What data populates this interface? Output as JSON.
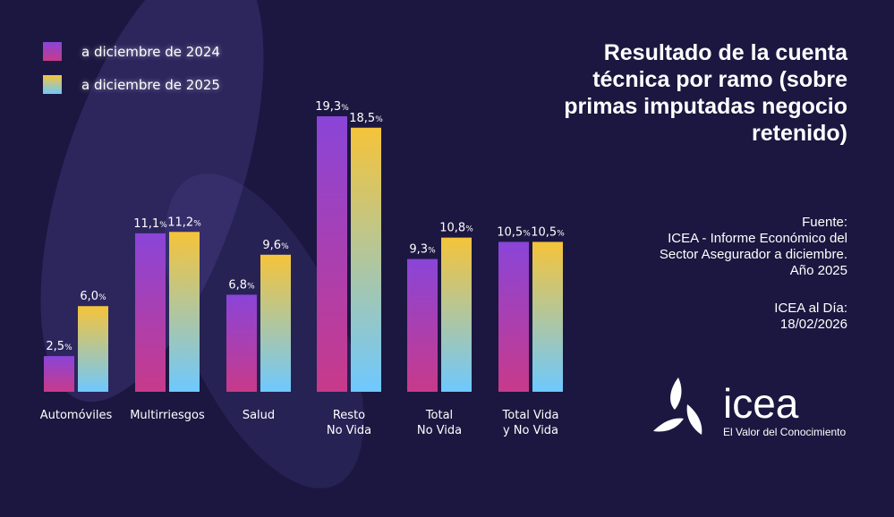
{
  "chart_data": {
    "type": "bar",
    "categories": [
      [
        "Automóviles"
      ],
      [
        "Multirriesgos"
      ],
      [
        "Salud"
      ],
      [
        "Resto",
        "No Vida"
      ],
      [
        "Total",
        "No Vida"
      ],
      [
        "Total Vida",
        "y No Vida"
      ]
    ],
    "series": [
      {
        "name": "a diciembre de 2024",
        "values": [
          2.5,
          11.1,
          6.8,
          19.3,
          9.3,
          10.5
        ],
        "labels": [
          "2,5",
          "11,1",
          "6,8",
          "19,3",
          "9,3",
          "10,5"
        ],
        "gradient": [
          "#8a45d8",
          "#c83a8a"
        ]
      },
      {
        "name": "a diciembre de 2025",
        "values": [
          6.0,
          11.2,
          9.6,
          18.5,
          10.8,
          10.5
        ],
        "labels": [
          "6,0",
          "11,2",
          "9,6",
          "18,5",
          "10,8",
          "10,5"
        ],
        "gradient": [
          "#f5c43a",
          "#6ec8ff"
        ]
      }
    ],
    "unit": "%",
    "title": "Resultado de la cuenta técnica por ramo (sobre primas imputadas negocio retenido)",
    "ylim": [
      0,
      20
    ],
    "grid": false,
    "legend": "top-left"
  },
  "source": {
    "label": "Fuente:",
    "lines": [
      "ICEA - Informe Económico del",
      "Sector Asegurador a diciembre.",
      "Año 2025"
    ]
  },
  "date": {
    "label": "ICEA al Día:",
    "value": "18/02/2026"
  },
  "logo": {
    "word": "icea",
    "tagline": "El Valor del Conocimiento"
  }
}
